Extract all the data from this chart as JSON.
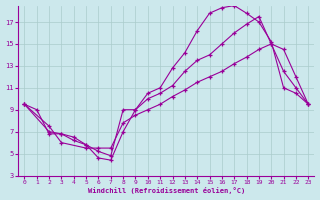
{
  "xlabel": "Windchill (Refroidissement éolien,°C)",
  "background_color": "#cce8ec",
  "line_color": "#990099",
  "grid_color": "#aacccc",
  "xlim": [
    -0.5,
    23.5
  ],
  "ylim": [
    3,
    18.5
  ],
  "xticks": [
    0,
    1,
    2,
    3,
    4,
    5,
    6,
    7,
    8,
    9,
    10,
    11,
    12,
    13,
    14,
    15,
    16,
    17,
    18,
    19,
    20,
    21,
    22,
    23
  ],
  "yticks": [
    3,
    5,
    7,
    9,
    11,
    13,
    15,
    17
  ],
  "line1_x": [
    0,
    1,
    2,
    3,
    4,
    5,
    6,
    7,
    8,
    9,
    10,
    11,
    12,
    13,
    14,
    15,
    16,
    17,
    18,
    19,
    20,
    21,
    22,
    23
  ],
  "line1_y": [
    9.5,
    9.0,
    6.8,
    6.8,
    6.2,
    5.8,
    4.6,
    4.4,
    7.0,
    9.0,
    10.5,
    11.0,
    12.8,
    14.2,
    16.2,
    17.8,
    18.3,
    18.5,
    17.8,
    17.0,
    15.2,
    11.0,
    10.5,
    9.5
  ],
  "line2_x": [
    0,
    2,
    3,
    4,
    5,
    6,
    7,
    8,
    9,
    10,
    11,
    12,
    13,
    14,
    15,
    16,
    17,
    18,
    19,
    20,
    21,
    22,
    23
  ],
  "line2_y": [
    9.5,
    7.0,
    6.8,
    6.5,
    5.8,
    5.2,
    4.8,
    9.0,
    9.0,
    10.0,
    10.5,
    11.2,
    12.5,
    13.5,
    14.0,
    15.0,
    16.0,
    16.8,
    17.5,
    15.0,
    12.5,
    11.0,
    9.5
  ],
  "line3_x": [
    0,
    2,
    3,
    5,
    6,
    7,
    8,
    9,
    10,
    11,
    12,
    13,
    14,
    15,
    16,
    17,
    18,
    19,
    20,
    21,
    22,
    23
  ],
  "line3_y": [
    9.5,
    7.5,
    6.0,
    5.5,
    5.5,
    5.5,
    7.8,
    8.5,
    9.0,
    9.5,
    10.2,
    10.8,
    11.5,
    12.0,
    12.5,
    13.2,
    13.8,
    14.5,
    15.0,
    14.5,
    12.0,
    9.5
  ]
}
